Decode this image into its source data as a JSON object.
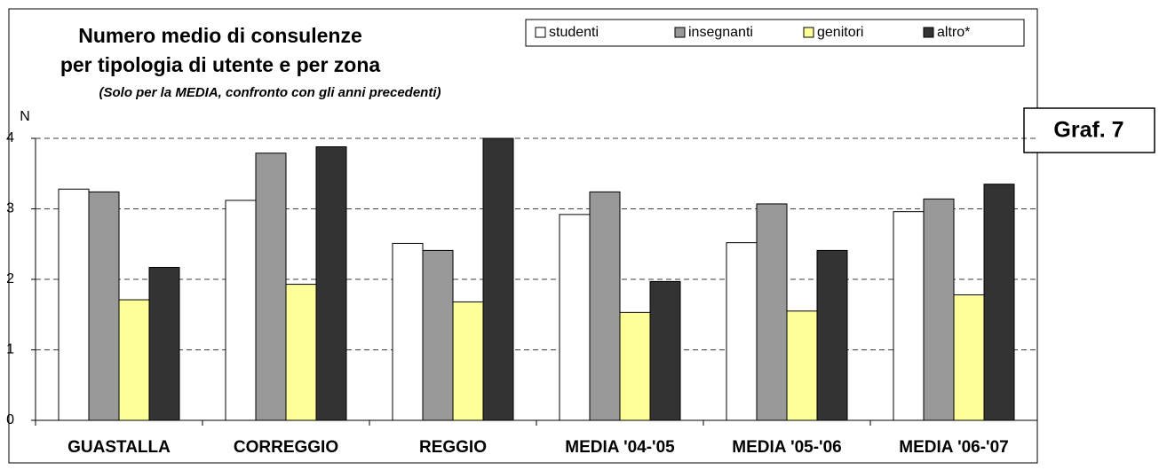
{
  "chart_data": {
    "type": "bar",
    "title": [
      "Numero medio di consulenze",
      "per tipologia di utente e per zona"
    ],
    "subtitle": "(Solo per la MEDIA, confronto con gli anni precedenti)",
    "y_label": "N",
    "annotation": "Graf. 7",
    "categories": [
      "GUASTALLA",
      "CORREGGIO",
      "REGGIO",
      "MEDIA '04-'05",
      "MEDIA '05-'06",
      "MEDIA '06-'07"
    ],
    "series": [
      {
        "name": "studenti",
        "color": "#ffffff",
        "values": [
          3.28,
          3.12,
          2.51,
          2.92,
          2.52,
          2.96
        ]
      },
      {
        "name": "insegnanti",
        "color": "#999999",
        "values": [
          3.24,
          3.79,
          2.41,
          3.24,
          3.07,
          3.14
        ]
      },
      {
        "name": "genitori",
        "color": "#ffff99",
        "values": [
          1.71,
          1.93,
          1.68,
          1.53,
          1.55,
          1.78
        ]
      },
      {
        "name": "altro*",
        "color": "#333333",
        "values": [
          2.17,
          3.88,
          4.0,
          1.97,
          2.41,
          3.35
        ]
      }
    ],
    "ylim": [
      0,
      4
    ],
    "yticks": [
      0,
      1,
      2,
      3,
      4
    ],
    "grid": true,
    "legend": "top-right"
  }
}
